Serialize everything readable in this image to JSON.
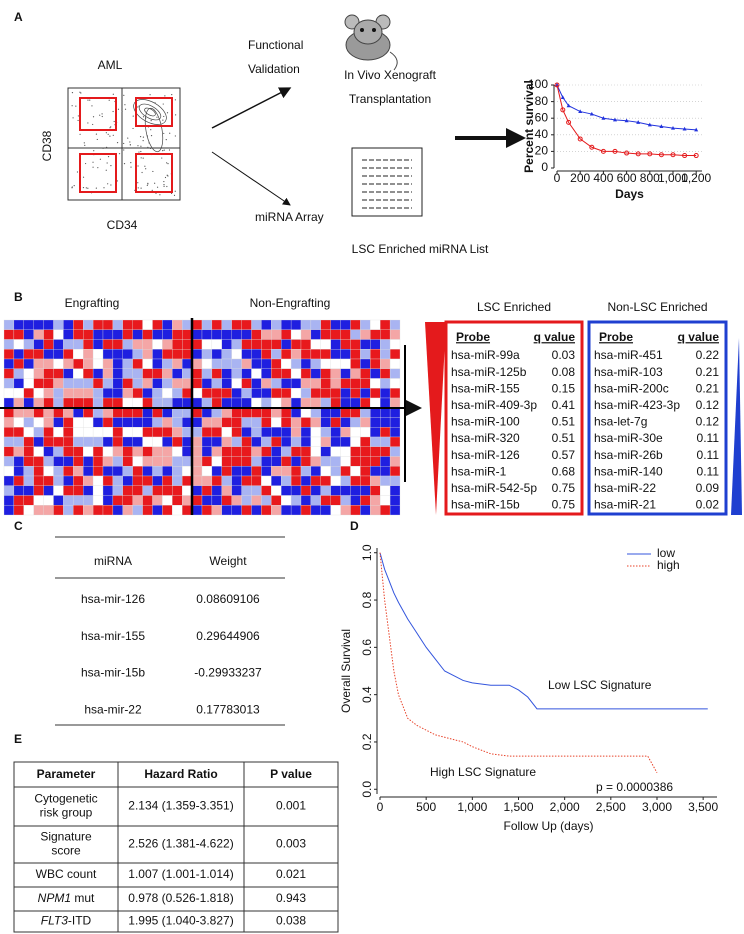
{
  "panel_labels": [
    "A",
    "B",
    "C",
    "D",
    "E"
  ],
  "panel_a": {
    "aml": "AML",
    "y_marker": "CD38",
    "x_marker": "CD34",
    "functional_validation": [
      "Functional",
      "Validation"
    ],
    "xenograft": [
      "In Vivo Xenograft",
      "Transplantation"
    ],
    "mirna_array": "miRNA Array",
    "mirna_list": "LSC Enriched miRNA List"
  },
  "panel_b": {
    "engrafting": "Engrafting",
    "non_engrafting": "Non-Engrafting",
    "lsc_table": {
      "title": "LSC Enriched",
      "color": "#e41a1c",
      "header": [
        "Probe",
        "q value"
      ],
      "rows": [
        [
          "hsa-miR-99a",
          "0.03"
        ],
        [
          "hsa-miR-125b",
          "0.08"
        ],
        [
          "hsa-miR-155",
          "0.15"
        ],
        [
          "hsa-miR-409-3p",
          "0.41"
        ],
        [
          "hsa-miR-100",
          "0.51"
        ],
        [
          "hsa-miR-320",
          "0.51"
        ],
        [
          "hsa-miR-126",
          "0.57"
        ],
        [
          "hsa-miR-1",
          "0.68"
        ],
        [
          "hsa-miR-542-5p",
          "0.75"
        ],
        [
          "hsa-miR-15b",
          "0.75"
        ]
      ]
    },
    "non_lsc_table": {
      "title": "Non-LSC Enriched",
      "color": "#1f3fd0",
      "header": [
        "Probe",
        "q value"
      ],
      "rows": [
        [
          "hsa-miR-451",
          "0.22"
        ],
        [
          "hsa-miR-103",
          "0.21"
        ],
        [
          "hsa-miR-200c",
          "0.21"
        ],
        [
          "hsa-miR-423-3p",
          "0.12"
        ],
        [
          "hsa-let-7g",
          "0.12"
        ],
        [
          "hsa-miR-30e",
          "0.11"
        ],
        [
          "hsa-miR-26b",
          "0.11"
        ],
        [
          "hsa-miR-140",
          "0.11"
        ],
        [
          "hsa-miR-22",
          "0.09"
        ],
        [
          "hsa-miR-21",
          "0.02"
        ]
      ]
    }
  },
  "panel_c": {
    "header": [
      "miRNA",
      "Weight"
    ],
    "highlight_row": 0,
    "highlight_color": "#e41a1c",
    "rows": [
      [
        "hsa-mir-126",
        "0.08609106"
      ],
      [
        "hsa-mir-155",
        "0.29644906"
      ],
      [
        "hsa-mir-15b",
        "-0.29933237"
      ],
      [
        "hsa-mir-22",
        "0.17783013"
      ]
    ]
  },
  "panel_e": {
    "header": [
      "Parameter",
      "Hazard Ratio",
      "P value"
    ],
    "highlight_row": 1,
    "highlight_color": "#e41a1c",
    "rows": [
      {
        "parameter": [
          "Cytogenetic",
          "risk group"
        ],
        "hazard_ratio": "2.134 (1.359-3.351)",
        "p_value": "0.001"
      },
      {
        "parameter": [
          "Signature",
          "score"
        ],
        "hazard_ratio": "2.526 (1.381-4.622)",
        "p_value": "0.003"
      },
      {
        "parameter": [
          "WBC count"
        ],
        "hazard_ratio": "1.007 (1.001-1.014)",
        "p_value": "0.021"
      },
      {
        "parameter_italic": "NPM1",
        "parameter": [
          " mut"
        ],
        "hazard_ratio": "0.978 (0.526-1.818)",
        "p_value": "0.943"
      },
      {
        "parameter_italic": "FLT3",
        "parameter": [
          "-ITD"
        ],
        "hazard_ratio": "1.995 (1.040-3.827)",
        "p_value": "0.038"
      }
    ]
  },
  "chart_data": [
    {
      "type": "line",
      "ylabel": "Percent survival",
      "xlabel": "Days",
      "grid": true,
      "xlim": [
        0,
        1250
      ],
      "ylim": [
        0,
        100
      ],
      "xticks": [
        0,
        200,
        400,
        600,
        800,
        {
          "value": 1000,
          "label": "1,000"
        },
        {
          "value": 1200,
          "label": "1,200"
        }
      ],
      "yticks": [
        0,
        20,
        40,
        60,
        80,
        100
      ],
      "x": [
        0,
        50,
        100,
        200,
        300,
        400,
        500,
        600,
        700,
        800,
        900,
        1000,
        1100,
        1200
      ],
      "series": [
        {
          "color": "#2233dd",
          "marker": "triangle",
          "values": [
            100,
            85,
            75,
            68,
            65,
            60,
            58,
            57,
            55,
            52,
            50,
            48,
            47,
            46
          ]
        },
        {
          "color": "#e41a1c",
          "marker": "circle",
          "values": [
            100,
            70,
            55,
            35,
            25,
            20,
            20,
            18,
            17,
            17,
            16,
            16,
            15,
            15
          ]
        }
      ]
    },
    {
      "type": "line",
      "ylabel": "Overall Survival",
      "xlabel": "Follow Up (days)",
      "legend": "top-right",
      "xlim": [
        0,
        3650
      ],
      "ylim": [
        -0.02,
        1.02
      ],
      "xticks": [
        0,
        500,
        {
          "value": 1000,
          "label": "1,000"
        },
        {
          "value": 1500,
          "label": "1,500"
        },
        {
          "value": 2000,
          "label": "2,000"
        },
        {
          "value": 2500,
          "label": "2,500"
        },
        {
          "value": 3000,
          "label": "3,000"
        },
        {
          "value": 3500,
          "label": "3,500"
        }
      ],
      "yticks": [
        {
          "value": 0,
          "label": "0.0"
        },
        0.2,
        0.4,
        0.6,
        0.8,
        {
          "value": 1,
          "label": "1.0"
        }
      ],
      "x": [
        0,
        50,
        100,
        150,
        200,
        300,
        400,
        500,
        600,
        700,
        800,
        900,
        1000,
        1200,
        1400,
        1500,
        1600,
        1700,
        2000,
        2500,
        2900,
        3000,
        3550
      ],
      "series": [
        {
          "name": "low",
          "color": "#3355dd",
          "style": "solid",
          "values": [
            1,
            0.93,
            0.88,
            0.83,
            0.79,
            0.72,
            0.66,
            0.6,
            0.55,
            0.5,
            0.48,
            0.46,
            0.45,
            0.44,
            0.44,
            0.42,
            0.39,
            0.34,
            0.34,
            0.34,
            0.34,
            0.34,
            0.34
          ]
        },
        {
          "name": "high",
          "color": "#e8432a",
          "style": "dotted",
          "values": [
            1,
            0.8,
            0.65,
            0.5,
            0.4,
            0.3,
            0.27,
            0.25,
            0.23,
            0.22,
            0.21,
            0.2,
            0.18,
            0.15,
            0.14,
            0.14,
            0.14,
            0.14,
            0.14,
            0.14,
            0.14,
            0.07,
            null
          ]
        }
      ],
      "annotations": [
        {
          "text": "Low LSC Signature",
          "color": "#2244cc"
        },
        {
          "text": "High LSC Signature",
          "color": "#e41a1c"
        },
        {
          "text": "p = 0.0000386",
          "color": "#000000"
        }
      ]
    }
  ]
}
